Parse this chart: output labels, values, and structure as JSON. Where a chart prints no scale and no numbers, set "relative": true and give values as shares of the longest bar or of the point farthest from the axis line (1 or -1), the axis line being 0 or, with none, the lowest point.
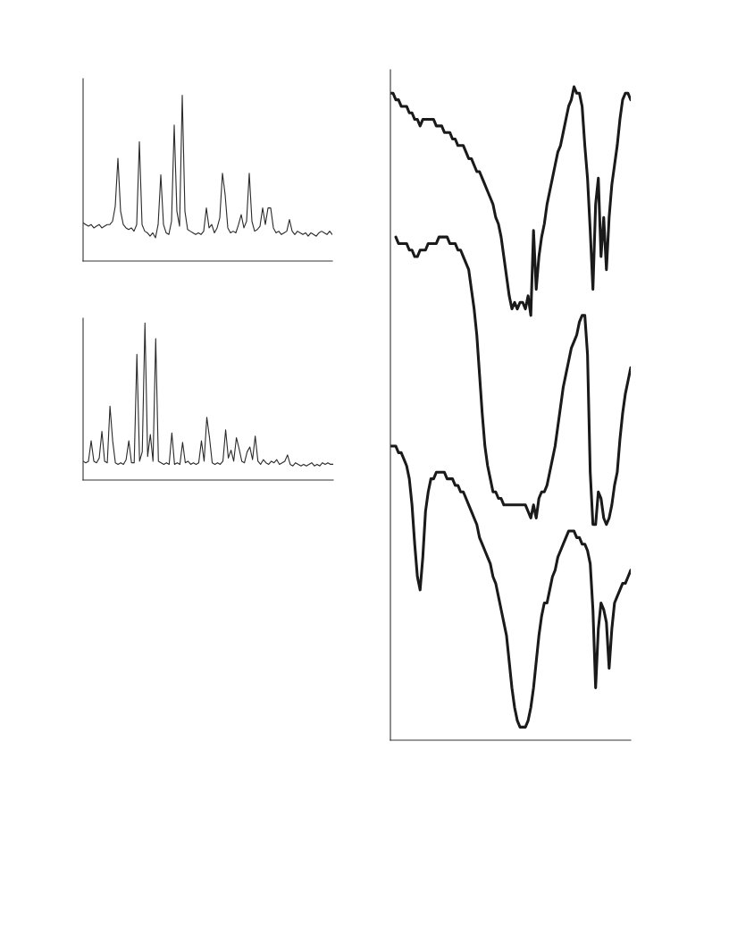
{
  "chart_data": [
    {
      "type": "line",
      "relative": true,
      "categories": [
        null,
        null,
        null,
        null,
        null,
        null,
        null,
        null,
        null,
        null,
        null,
        null,
        null,
        null,
        null,
        null,
        null,
        null,
        null,
        null,
        null,
        null,
        null,
        null,
        null,
        null,
        null,
        null,
        null,
        null,
        null,
        null,
        null,
        null,
        null,
        null,
        null,
        null,
        null,
        null,
        null,
        null,
        null,
        null,
        null,
        null,
        null,
        null,
        null,
        null,
        null,
        null,
        null,
        null,
        null,
        null,
        null,
        null,
        null,
        null,
        null,
        null,
        null,
        null,
        null,
        null,
        null,
        null,
        null,
        null,
        null,
        null,
        null,
        null,
        null,
        null,
        null,
        null,
        null,
        null,
        null,
        null,
        null,
        null,
        null,
        null,
        null,
        null,
        null,
        null,
        null,
        null,
        null,
        null
      ],
      "series": [
        {
          "color": "#2b2b2b",
          "values": [
            0.23,
            0.22,
            0.21,
            0.22,
            0.2,
            0.21,
            0.22,
            0.2,
            0.21,
            0.22,
            0.22,
            0.24,
            0.33,
            0.62,
            0.3,
            0.22,
            0.2,
            0.19,
            0.2,
            0.18,
            0.22,
            0.72,
            0.22,
            0.18,
            0.17,
            0.15,
            0.17,
            0.14,
            0.22,
            0.52,
            0.22,
            0.17,
            0.16,
            0.24,
            0.82,
            0.3,
            0.21,
            1.0,
            0.3,
            0.19,
            0.18,
            0.17,
            0.16,
            0.17,
            0.16,
            0.18,
            0.32,
            0.2,
            0.22,
            0.17,
            0.2,
            0.26,
            0.53,
            0.4,
            0.2,
            0.17,
            0.18,
            0.17,
            0.22,
            0.28,
            0.2,
            0.24,
            0.53,
            0.24,
            0.18,
            0.19,
            0.21,
            0.32,
            0.22,
            0.32,
            0.32,
            0.2,
            0.17,
            0.18,
            0.16,
            0.17,
            0.18,
            0.25,
            0.18,
            0.16,
            0.18,
            0.17,
            0.16,
            0.17,
            0.15,
            0.17,
            0.16,
            0.15,
            0.17,
            0.18,
            0.17,
            0.16,
            0.18,
            0.16
          ]
        }
      ]
    },
    {
      "type": "line",
      "relative": true,
      "categories": [
        null,
        null,
        null,
        null,
        null,
        null,
        null,
        null,
        null,
        null,
        null,
        null,
        null,
        null,
        null,
        null,
        null,
        null,
        null,
        null,
        null,
        null,
        null,
        null,
        null,
        null,
        null,
        null,
        null,
        null,
        null,
        null,
        null,
        null,
        null,
        null,
        null,
        null,
        null,
        null,
        null,
        null,
        null,
        null,
        null,
        null,
        null,
        null,
        null,
        null,
        null,
        null,
        null,
        null,
        null,
        null,
        null,
        null,
        null,
        null,
        null,
        null,
        null,
        null,
        null,
        null,
        null,
        null,
        null,
        null,
        null,
        null,
        null,
        null,
        null,
        null,
        null,
        null,
        null,
        null,
        null,
        null,
        null,
        null,
        null,
        null,
        null,
        null,
        null,
        null,
        null,
        null,
        null,
        null
      ],
      "series": [
        {
          "color": "#2b2b2b",
          "values": [
            0.12,
            0.11,
            0.12,
            0.25,
            0.12,
            0.11,
            0.14,
            0.31,
            0.12,
            0.11,
            0.47,
            0.25,
            0.11,
            0.1,
            0.11,
            0.1,
            0.13,
            0.25,
            0.11,
            0.11,
            0.8,
            0.12,
            0.18,
            1.0,
            0.15,
            0.29,
            0.12,
            0.9,
            0.12,
            0.11,
            0.1,
            0.11,
            0.1,
            0.3,
            0.1,
            0.11,
            0.1,
            0.24,
            0.11,
            0.12,
            0.1,
            0.11,
            0.1,
            0.11,
            0.25,
            0.12,
            0.4,
            0.27,
            0.11,
            0.1,
            0.11,
            0.1,
            0.12,
            0.32,
            0.14,
            0.19,
            0.12,
            0.27,
            0.2,
            0.12,
            0.11,
            0.18,
            0.21,
            0.13,
            0.28,
            0.12,
            0.1,
            0.13,
            0.11,
            0.1,
            0.12,
            0.11,
            0.13,
            0.1,
            0.11,
            0.12,
            0.16,
            0.1,
            0.09,
            0.11,
            0.1,
            0.09,
            0.1,
            0.09,
            0.1,
            0.11,
            0.09,
            0.1,
            0.09,
            0.11,
            0.1,
            0.11,
            0.1,
            0.1
          ]
        }
      ]
    },
    {
      "type": "line",
      "relative": true,
      "categories": [
        null,
        null,
        null,
        null,
        null,
        null,
        null,
        null,
        null,
        null,
        null,
        null,
        null,
        null,
        null,
        null,
        null,
        null,
        null,
        null,
        null,
        null,
        null,
        null,
        null,
        null,
        null,
        null,
        null,
        null,
        null,
        null,
        null,
        null,
        null,
        null,
        null,
        null,
        null,
        null,
        null,
        null,
        null,
        null,
        null,
        null,
        null,
        null,
        null,
        null,
        null,
        null,
        null,
        null,
        null,
        null,
        null,
        null,
        null,
        null,
        null,
        null,
        null,
        null,
        null,
        null,
        null,
        null,
        null,
        null,
        null,
        null,
        null,
        null,
        null,
        null,
        null,
        null,
        null,
        null,
        null,
        null,
        null,
        null,
        null,
        null,
        null,
        null,
        null,
        null
      ],
      "series": [
        {
          "color": "#1a1a1a",
          "values": [
            0.99,
            0.99,
            0.98,
            0.98,
            0.97,
            0.97,
            0.97,
            0.96,
            0.96,
            0.95,
            0.95,
            0.94,
            0.95,
            0.95,
            0.95,
            0.95,
            0.95,
            0.94,
            0.94,
            0.94,
            0.93,
            0.93,
            0.93,
            0.92,
            0.92,
            0.91,
            0.91,
            0.91,
            0.9,
            0.89,
            0.89,
            0.88,
            0.87,
            0.87,
            0.86,
            0.85,
            0.84,
            0.83,
            0.82,
            0.8,
            0.79,
            0.77,
            0.74,
            0.71,
            0.68,
            0.66,
            0.67,
            0.66,
            0.67,
            0.67,
            0.66,
            0.68,
            0.65,
            0.78,
            0.69,
            0.74,
            0.77,
            0.79,
            0.82,
            0.84,
            0.86,
            0.88,
            0.9,
            0.91,
            0.93,
            0.95,
            0.97,
            0.98,
            1.0,
            0.99,
            0.99,
            0.97,
            0.91,
            0.86,
            0.78,
            0.69,
            0.82,
            0.86,
            0.74,
            0.8,
            0.72,
            0.8,
            0.85,
            0.88,
            0.91,
            0.95,
            0.98,
            0.99,
            0.99,
            0.98
          ]
        },
        {
          "color": "#1a1a1a",
          "values": [
            null,
            null,
            0.77,
            0.76,
            0.76,
            0.76,
            0.76,
            0.75,
            0.75,
            0.74,
            0.74,
            0.75,
            0.75,
            0.75,
            0.76,
            0.76,
            0.76,
            0.76,
            0.77,
            0.77,
            0.77,
            0.77,
            0.76,
            0.76,
            0.76,
            0.75,
            0.75,
            0.74,
            0.73,
            0.72,
            0.69,
            0.66,
            0.62,
            0.56,
            0.5,
            0.45,
            0.42,
            0.4,
            0.38,
            0.38,
            0.37,
            0.37,
            0.36,
            0.36,
            0.36,
            0.36,
            0.36,
            0.36,
            0.36,
            0.36,
            0.36,
            0.35,
            0.34,
            0.36,
            0.34,
            0.37,
            0.38,
            0.38,
            0.39,
            0.41,
            0.43,
            0.45,
            0.48,
            0.51,
            0.54,
            0.56,
            0.58,
            0.6,
            0.61,
            0.62,
            0.64,
            0.65,
            0.65,
            0.59,
            0.41,
            0.33,
            0.33,
            0.38,
            0.37,
            0.34,
            0.33,
            0.34,
            0.36,
            0.39,
            0.41,
            0.46,
            0.5,
            0.53,
            0.55,
            0.57
          ]
        },
        {
          "color": "#1a1a1a",
          "values": [
            0.45,
            0.45,
            0.45,
            0.44,
            0.44,
            0.43,
            0.42,
            0.4,
            0.36,
            0.3,
            0.25,
            0.23,
            0.28,
            0.35,
            0.38,
            0.4,
            0.4,
            0.41,
            0.41,
            0.41,
            0.41,
            0.4,
            0.4,
            0.4,
            0.39,
            0.39,
            0.38,
            0.38,
            0.37,
            0.36,
            0.35,
            0.34,
            0.33,
            0.31,
            0.3,
            0.29,
            0.28,
            0.27,
            0.25,
            0.24,
            0.22,
            0.2,
            0.18,
            0.16,
            0.12,
            0.08,
            0.05,
            0.03,
            0.02,
            0.02,
            0.02,
            0.03,
            0.05,
            0.08,
            0.12,
            0.16,
            0.19,
            0.21,
            0.21,
            0.23,
            0.25,
            0.26,
            0.28,
            0.29,
            0.3,
            0.31,
            0.32,
            0.32,
            0.32,
            0.31,
            0.31,
            0.3,
            0.3,
            0.29,
            0.27,
            0.2,
            0.08,
            0.17,
            0.21,
            0.2,
            0.18,
            0.11,
            0.17,
            0.21,
            0.22,
            0.23,
            0.24,
            0.24,
            0.25,
            0.26
          ]
        }
      ]
    }
  ]
}
